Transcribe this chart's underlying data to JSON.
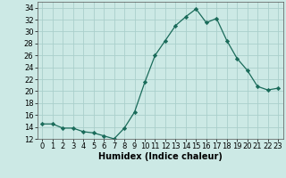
{
  "x": [
    0,
    1,
    2,
    3,
    4,
    5,
    6,
    7,
    8,
    9,
    10,
    11,
    12,
    13,
    14,
    15,
    16,
    17,
    18,
    19,
    20,
    21,
    22,
    23
  ],
  "y": [
    14.5,
    14.5,
    13.8,
    13.8,
    13.2,
    13.0,
    12.5,
    12.0,
    13.8,
    16.5,
    21.5,
    26.0,
    28.5,
    31.0,
    32.5,
    33.8,
    31.5,
    32.2,
    28.5,
    25.5,
    23.5,
    20.8,
    20.2,
    20.5
  ],
  "line_color": "#1a6b5a",
  "marker": "D",
  "marker_size": 2.2,
  "bg_color": "#cce9e5",
  "grid_color": "#aacfcb",
  "xlabel": "Humidex (Indice chaleur)",
  "ylabel": "",
  "xlim": [
    -0.5,
    23.5
  ],
  "ylim": [
    12,
    35
  ],
  "yticks": [
    12,
    14,
    16,
    18,
    20,
    22,
    24,
    26,
    28,
    30,
    32,
    34
  ],
  "xticks": [
    0,
    1,
    2,
    3,
    4,
    5,
    6,
    7,
    8,
    9,
    10,
    11,
    12,
    13,
    14,
    15,
    16,
    17,
    18,
    19,
    20,
    21,
    22,
    23
  ],
  "label_fontsize": 7,
  "tick_fontsize": 6
}
